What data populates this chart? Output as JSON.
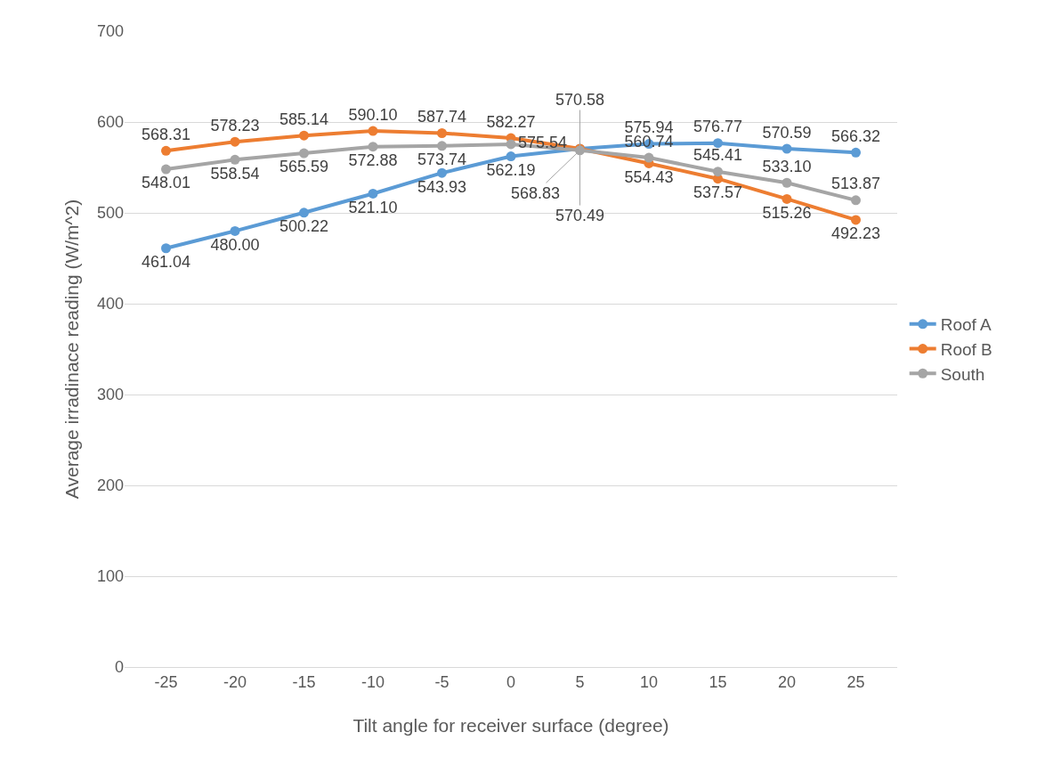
{
  "chart_data": {
    "type": "line",
    "xlabel": "Tilt angle for receiver surface (degree)",
    "ylabel": "Average irradinace reading (W/m^2)",
    "x": [
      -25,
      -20,
      -15,
      -10,
      -5,
      0,
      5,
      10,
      15,
      20,
      25
    ],
    "xlim": [
      -28,
      28
    ],
    "xticks": [
      -25,
      -20,
      -15,
      -10,
      -5,
      0,
      5,
      10,
      15,
      20,
      25
    ],
    "ylim": [
      0,
      700
    ],
    "yticks": [
      0,
      100,
      200,
      300,
      400,
      500,
      600,
      700
    ],
    "grid": "y",
    "legend": "right",
    "marker": "circle",
    "line_style": "solid",
    "data_labels": true,
    "series": [
      {
        "name": "Roof A",
        "color": "#5b9bd5",
        "values": [
          461.04,
          480.0,
          500.22,
          521.1,
          543.93,
          562.19,
          570.49,
          575.94,
          576.77,
          570.59,
          566.32
        ],
        "value_labels": [
          "461.04",
          "480.00",
          "500.22",
          "521.10",
          "543.93",
          "562.19",
          "570.49",
          "575.94",
          "576.77",
          "570.59",
          "566.32"
        ]
      },
      {
        "name": "Roof B",
        "color": "#ed7d31",
        "values": [
          568.31,
          578.23,
          585.14,
          590.1,
          587.74,
          582.27,
          570.58,
          554.43,
          537.57,
          515.26,
          492.23
        ],
        "value_labels": [
          "568.31",
          "578.23",
          "585.14",
          "590.10",
          "587.74",
          "582.27",
          "570.58",
          "554.43",
          "537.57",
          "515.26",
          "492.23"
        ]
      },
      {
        "name": "South",
        "color": "#a5a5a5",
        "values": [
          548.01,
          558.54,
          565.59,
          572.88,
          573.74,
          575.54,
          568.83,
          560.74,
          545.41,
          533.1,
          513.87
        ],
        "value_labels": [
          "548.01",
          "558.54",
          "565.59",
          "572.88",
          "573.74",
          "575.54",
          "568.83",
          "560.74",
          "545.41",
          "533.10",
          "513.87"
        ]
      }
    ]
  }
}
